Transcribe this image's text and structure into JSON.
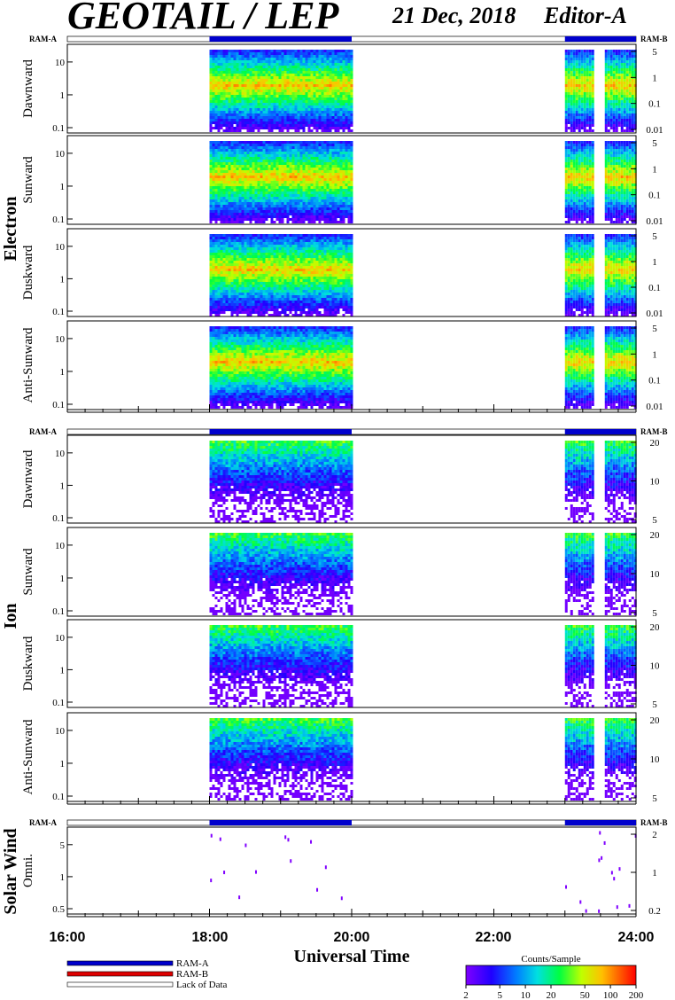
{
  "header": {
    "title": "GEOTAIL / LEP",
    "date": "21 Dec, 2018",
    "editor": "Editor-A"
  },
  "ram_labels": {
    "a": "RAM-A",
    "b": "RAM-B"
  },
  "colors": {
    "ram_a": "#0000cc",
    "ram_b": "#dd0000",
    "lack_of_data": "#ffffff"
  },
  "chart_data": {
    "type": "heatmap",
    "x_axis": {
      "title": "Universal Time",
      "range": [
        "16:00",
        "24:00"
      ],
      "major_ticks": [
        "16:00",
        "18:00",
        "20:00",
        "22:00",
        "24:00"
      ]
    },
    "data_intervals": [
      [
        "18:00",
        "20:00"
      ],
      [
        "23:00",
        "24:00"
      ]
    ],
    "groups": [
      {
        "name": "Electron",
        "panels": [
          {
            "label": "Dawnward",
            "left_ticks": [
              "0.1",
              "1",
              "10"
            ],
            "right_ticks": [
              "0.01",
              "0.1",
              "1",
              "5"
            ]
          },
          {
            "label": "Sunward",
            "left_ticks": [
              "0.1",
              "1",
              "10"
            ],
            "right_ticks": [
              "0.01",
              "0.1",
              "1",
              "5"
            ]
          },
          {
            "label": "Duskward",
            "left_ticks": [
              "0.1",
              "1",
              "10"
            ],
            "right_ticks": [
              "0.01",
              "0.1",
              "1",
              "5"
            ]
          },
          {
            "label": "Anti-Sunward",
            "left_ticks": [
              "0.1",
              "1",
              "10"
            ],
            "right_ticks": [
              "0.01",
              "0.1",
              "1",
              "5"
            ]
          }
        ]
      },
      {
        "name": "Ion",
        "panels": [
          {
            "label": "Dawnward",
            "left_ticks": [
              "0.1",
              "1",
              "10"
            ],
            "right_ticks": [
              "5",
              "10",
              "20"
            ]
          },
          {
            "label": "Sunward",
            "left_ticks": [
              "0.1",
              "1",
              "10"
            ],
            "right_ticks": [
              "5",
              "10",
              "20"
            ]
          },
          {
            "label": "Duskward",
            "left_ticks": [
              "0.1",
              "1",
              "10"
            ],
            "right_ticks": [
              "5",
              "10",
              "20"
            ]
          },
          {
            "label": "Anti-Sunward",
            "left_ticks": [
              "0.1",
              "1",
              "10"
            ],
            "right_ticks": [
              "5",
              "10",
              "20"
            ]
          }
        ]
      },
      {
        "name": "Solar Wind",
        "panels": [
          {
            "label": "Omni.",
            "left_ticks": [
              "0.5",
              "1",
              "5"
            ],
            "right_ticks": [
              "0.2",
              "1",
              "2"
            ]
          }
        ]
      }
    ],
    "colorbar": {
      "title": "Counts/Sample",
      "ticks": [
        "2",
        "5",
        "10",
        "20",
        "50",
        "100",
        "200"
      ],
      "scale": "log",
      "range": [
        2,
        200
      ]
    },
    "legend": [
      {
        "label": "RAM-A",
        "color": "#0000cc"
      },
      {
        "label": "RAM-B",
        "color": "#dd0000"
      },
      {
        "label": "Lack of Data",
        "color": "#ffffff"
      }
    ]
  }
}
